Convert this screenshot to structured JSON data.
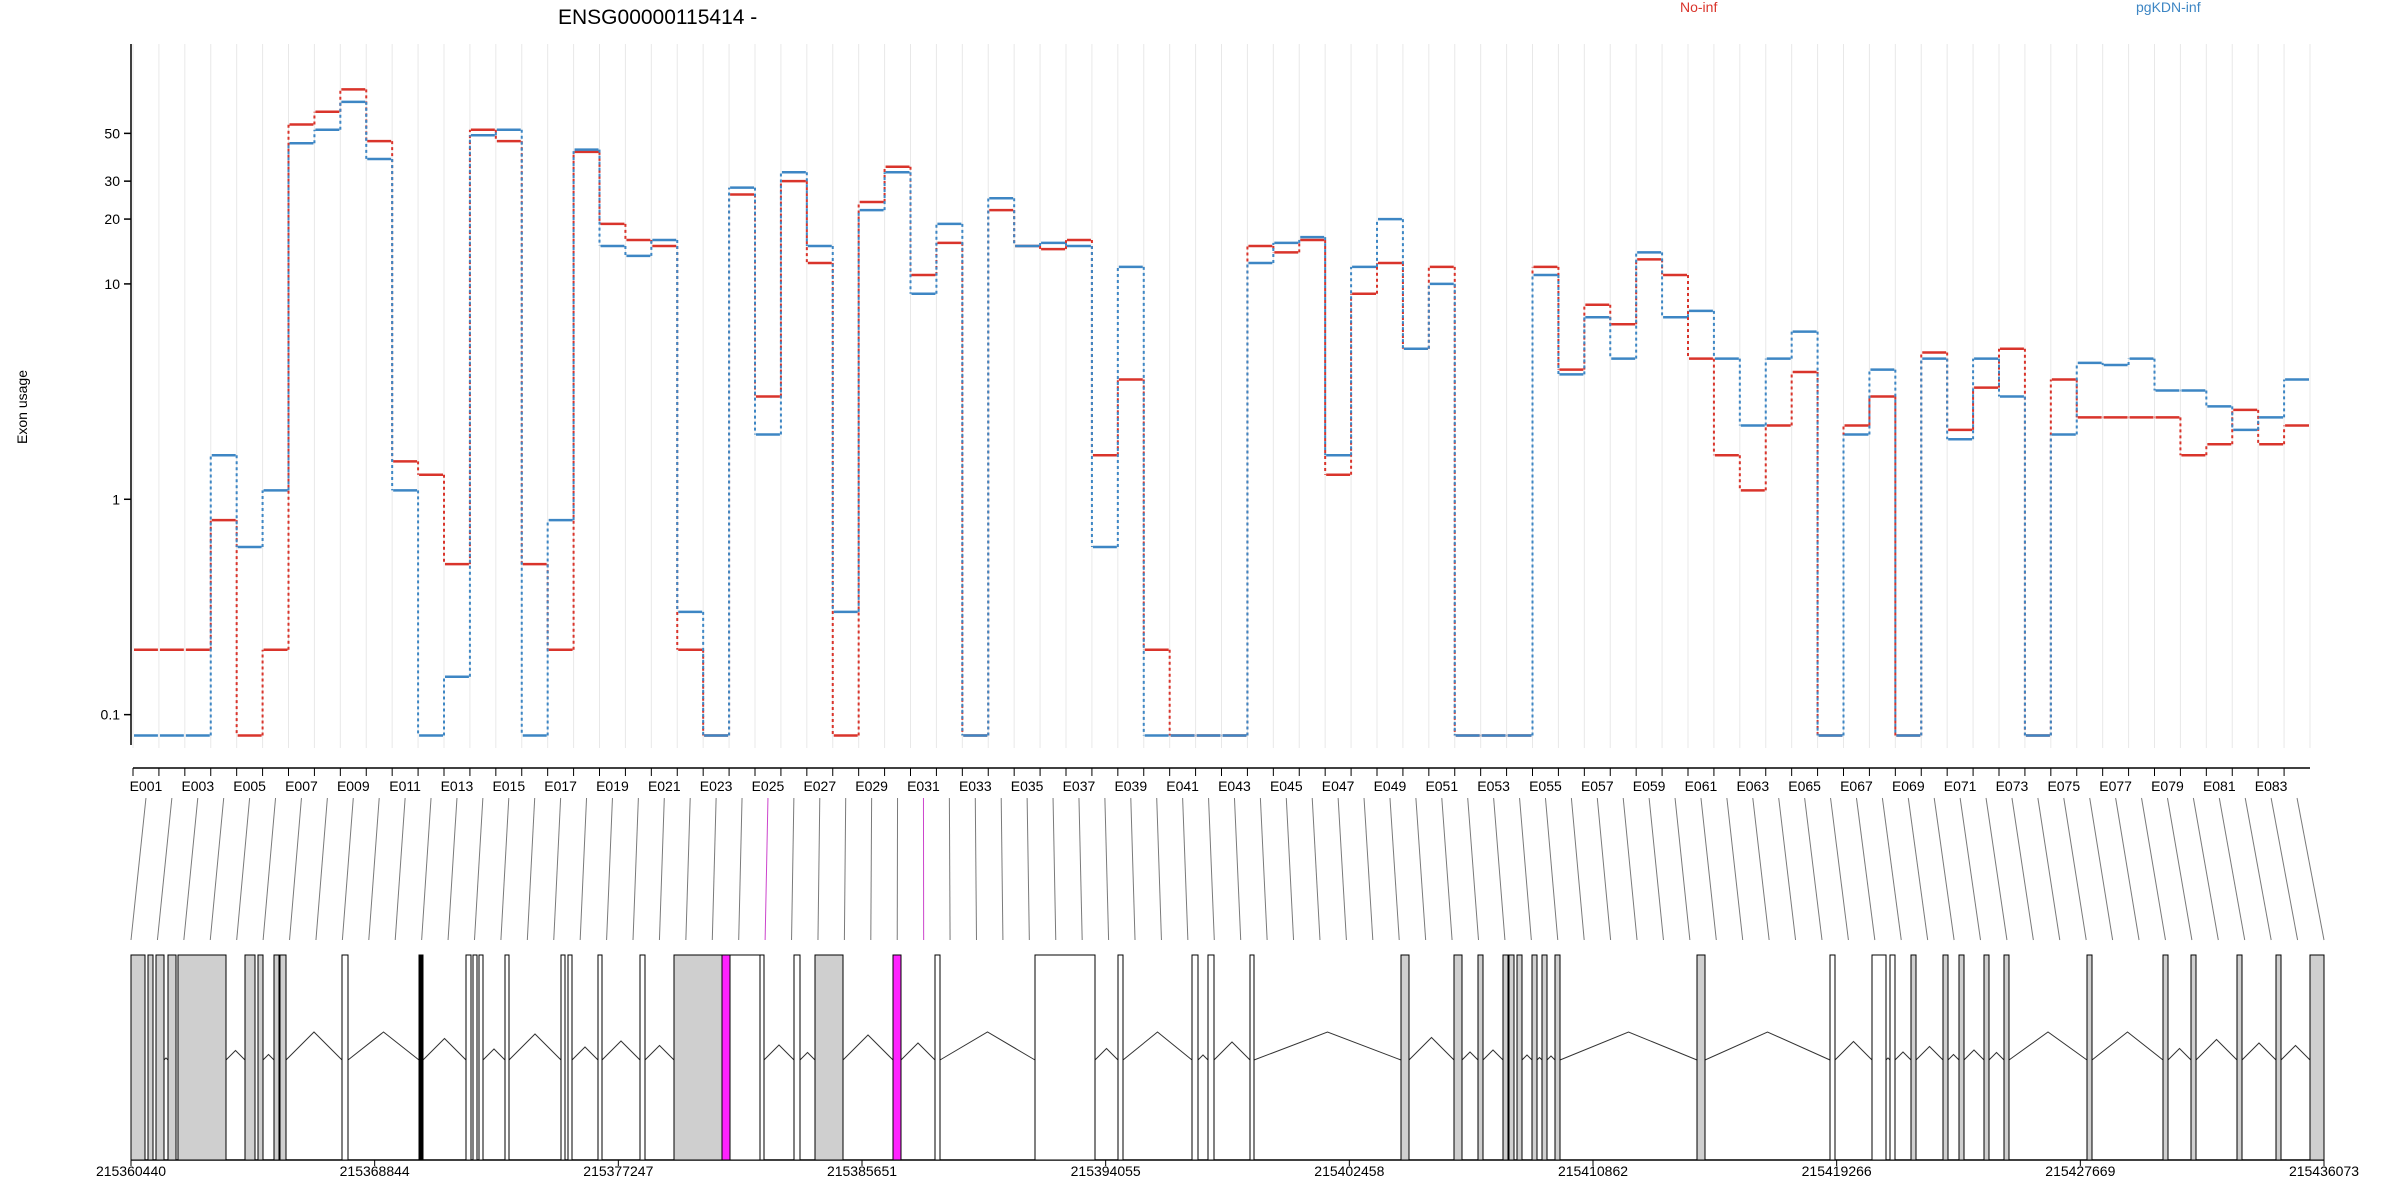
{
  "title": "ENSG00000115414 -",
  "ylabel": "Exon usage",
  "legend": [
    {
      "name": "No-inf",
      "color": "#d9342b"
    },
    {
      "name": "pgKDN-inf",
      "color": "#3d86c4"
    }
  ],
  "chart_data": {
    "type": "line",
    "scale": "log",
    "ylim": [
      0.07,
      130
    ],
    "yticks": [
      0.1,
      1,
      10,
      20,
      30,
      50
    ],
    "ytick_labels": [
      "0.1",
      "1",
      "10",
      "20",
      "30",
      "50"
    ],
    "exons": [
      "E001",
      "E002",
      "E003",
      "E004",
      "E005",
      "E006",
      "E007",
      "E008",
      "E009",
      "E010",
      "E011",
      "E012",
      "E013",
      "E014",
      "E015",
      "E016",
      "E017",
      "E018",
      "E019",
      "E020",
      "E021",
      "E022",
      "E023",
      "E024",
      "E025",
      "E026",
      "E027",
      "E028",
      "E029",
      "E030",
      "E031",
      "E032",
      "E033",
      "E034",
      "E035",
      "E036",
      "E037",
      "E038",
      "E039",
      "E040",
      "E041",
      "E042",
      "E043",
      "E044",
      "E045",
      "E046",
      "E047",
      "E048",
      "E049",
      "E050",
      "E051",
      "E052",
      "E053",
      "E054",
      "E055",
      "E056",
      "E057",
      "E058",
      "E059",
      "E060",
      "E061",
      "E062",
      "E063",
      "E064",
      "E065",
      "E066",
      "E067",
      "E068",
      "E069",
      "E070",
      "E071",
      "E072",
      "E073",
      "E074",
      "E075",
      "E076",
      "E077",
      "E078",
      "E079",
      "E080",
      "E081",
      "E082",
      "E083",
      "E084"
    ],
    "tick_labels": [
      "E001",
      "E003",
      "E005",
      "E007",
      "E009",
      "E011",
      "E013",
      "E015",
      "E017",
      "E019",
      "E021",
      "E023",
      "E025",
      "E027",
      "E029",
      "E031",
      "E033",
      "E035",
      "E037",
      "E039",
      "E041",
      "E043",
      "E045",
      "E047",
      "E049",
      "E051",
      "E053",
      "E055",
      "E057",
      "E059",
      "E061",
      "E063",
      "E065",
      "E067",
      "E069",
      "E071",
      "E073",
      "E075",
      "E077",
      "E079",
      "E081",
      "E083"
    ],
    "series": [
      {
        "name": "No-inf",
        "color": "#d9342b",
        "values": [
          0.2,
          0.2,
          0.2,
          0.8,
          0.08,
          0.2,
          55,
          63,
          80,
          46,
          1.5,
          1.3,
          0.5,
          52,
          46,
          0.5,
          0.2,
          41,
          19,
          16,
          15,
          0.2,
          0.08,
          26,
          3,
          30,
          12.5,
          0.08,
          24,
          35,
          11,
          15.5,
          0.08,
          22,
          15,
          14.5,
          16,
          1.6,
          3.6,
          0.2,
          0.08,
          0.08,
          0.08,
          15,
          14,
          16,
          1.3,
          9,
          12.5,
          5,
          12,
          0.08,
          0.08,
          0.08,
          12,
          4,
          8,
          6.5,
          13,
          11,
          4.5,
          1.6,
          1.1,
          2.2,
          3.9,
          0.08,
          2.2,
          3,
          0.08,
          4.8,
          2.1,
          3.3,
          5,
          0.08,
          3.6,
          2.4,
          2.4,
          2.4,
          2.4,
          1.6,
          1.8,
          2.6,
          1.8,
          2.2
        ]
      },
      {
        "name": "pgKDN-inf",
        "color": "#3d86c4",
        "values": [
          0.08,
          0.08,
          0.08,
          1.6,
          0.6,
          1.1,
          45,
          52,
          70,
          38,
          1.1,
          0.08,
          0.15,
          49,
          52,
          0.08,
          0.8,
          42,
          15,
          13.5,
          16,
          0.3,
          0.08,
          28,
          2,
          33,
          15,
          0.3,
          22,
          33,
          9,
          19,
          0.08,
          25,
          15,
          15.5,
          15,
          0.6,
          12,
          0.08,
          0.08,
          0.08,
          0.08,
          12.5,
          15.5,
          16.5,
          1.6,
          12,
          20,
          5,
          10,
          0.08,
          0.08,
          0.08,
          11,
          3.8,
          7,
          4.5,
          14,
          7,
          7.5,
          4.5,
          2.2,
          4.5,
          6,
          0.08,
          2,
          4,
          0.08,
          4.5,
          1.9,
          4.5,
          3,
          0.08,
          2,
          4.3,
          4.2,
          4.5,
          3.2,
          3.2,
          2.7,
          2.1,
          2.4,
          3.6
        ]
      }
    ],
    "genomic_labels": [
      "215360440",
      "215368844",
      "215377247",
      "215385651",
      "215394055",
      "215402458",
      "215410862",
      "215419266",
      "215427669",
      "215436073"
    ]
  }
}
